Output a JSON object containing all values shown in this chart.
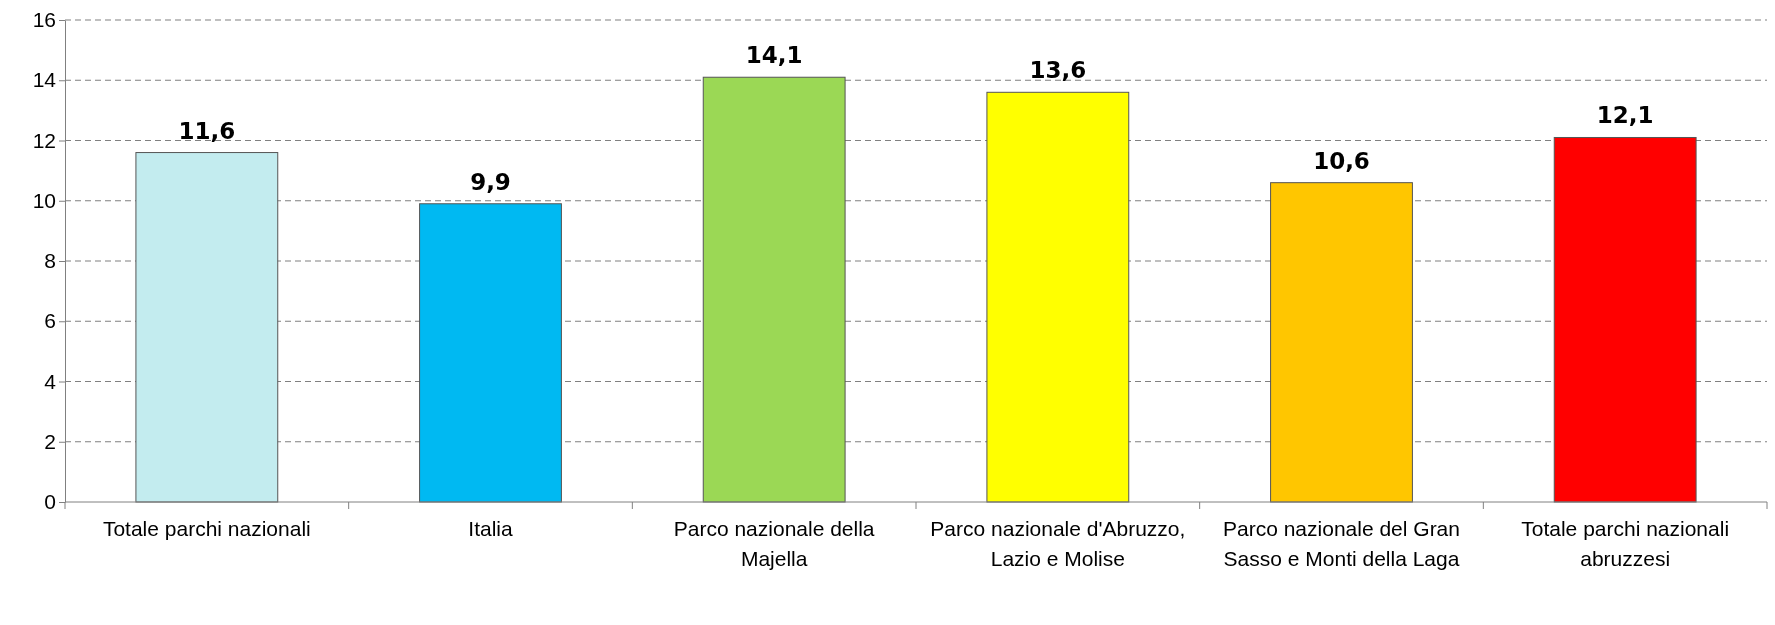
{
  "chart_data": {
    "type": "bar",
    "categories": [
      "Totale parchi nazionali",
      "Italia",
      "Parco nazionale della Majella",
      "Parco nazionale d'Abruzzo, Lazio e Molise",
      "Parco nazionale del Gran Sasso e Monti della Laga",
      "Totale parchi nazionali abruzzesi"
    ],
    "values": [
      11.6,
      9.9,
      14.1,
      13.6,
      10.6,
      12.1
    ],
    "value_labels": [
      "11,6",
      "9,9",
      "14,1",
      "13,6",
      "10,6",
      "12,1"
    ],
    "colors": [
      "#c3ecef",
      "#00b9f2",
      "#9bd855",
      "#ffff00",
      "#ffc600",
      "#ff0000"
    ],
    "ylim": [
      0,
      16
    ],
    "yticks": [
      0,
      2,
      4,
      6,
      8,
      10,
      12,
      14,
      16
    ],
    "grid": "y"
  }
}
